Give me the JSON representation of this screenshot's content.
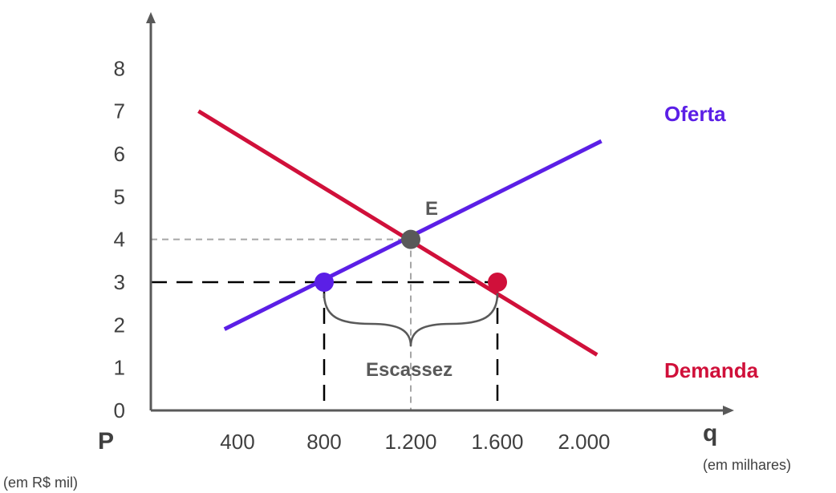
{
  "chart_data": {
    "type": "line",
    "y_axis": {
      "title": "P",
      "unit": "(em R$ mil)",
      "range": [
        0,
        8
      ],
      "tick_labels": [
        "0",
        "1",
        "2",
        "3",
        "4",
        "5",
        "6",
        "7",
        "8"
      ]
    },
    "x_axis": {
      "title": "q",
      "unit": "(em milhares)",
      "range": [
        0,
        2000
      ],
      "tick_values": [
        400,
        800,
        1200,
        1600,
        2000
      ],
      "tick_labels": [
        "400",
        "800",
        "1.200",
        "1.600",
        "2.000"
      ]
    },
    "series": [
      {
        "name": "Oferta",
        "color": "#5b1fe6",
        "points": [
          [
            340,
            1.9
          ],
          [
            2080,
            6.3
          ]
        ]
      },
      {
        "name": "Demanda",
        "color": "#d0103a",
        "points": [
          [
            220,
            7.0
          ],
          [
            2060,
            1.3
          ]
        ]
      }
    ],
    "points": [
      {
        "name": "equilibrium",
        "label": "E",
        "x": 1200,
        "y": 4,
        "color": "#595959"
      },
      {
        "name": "supply-point",
        "label": "",
        "x": 800,
        "y": 3,
        "color": "#5b1fe6"
      },
      {
        "name": "demand-point",
        "label": "",
        "x": 1600,
        "y": 3,
        "color": "#d0103a"
      }
    ],
    "annotations": {
      "shortage": {
        "label": "Escassez",
        "from": 800,
        "to": 1600,
        "price": 3
      }
    },
    "grid": false
  }
}
